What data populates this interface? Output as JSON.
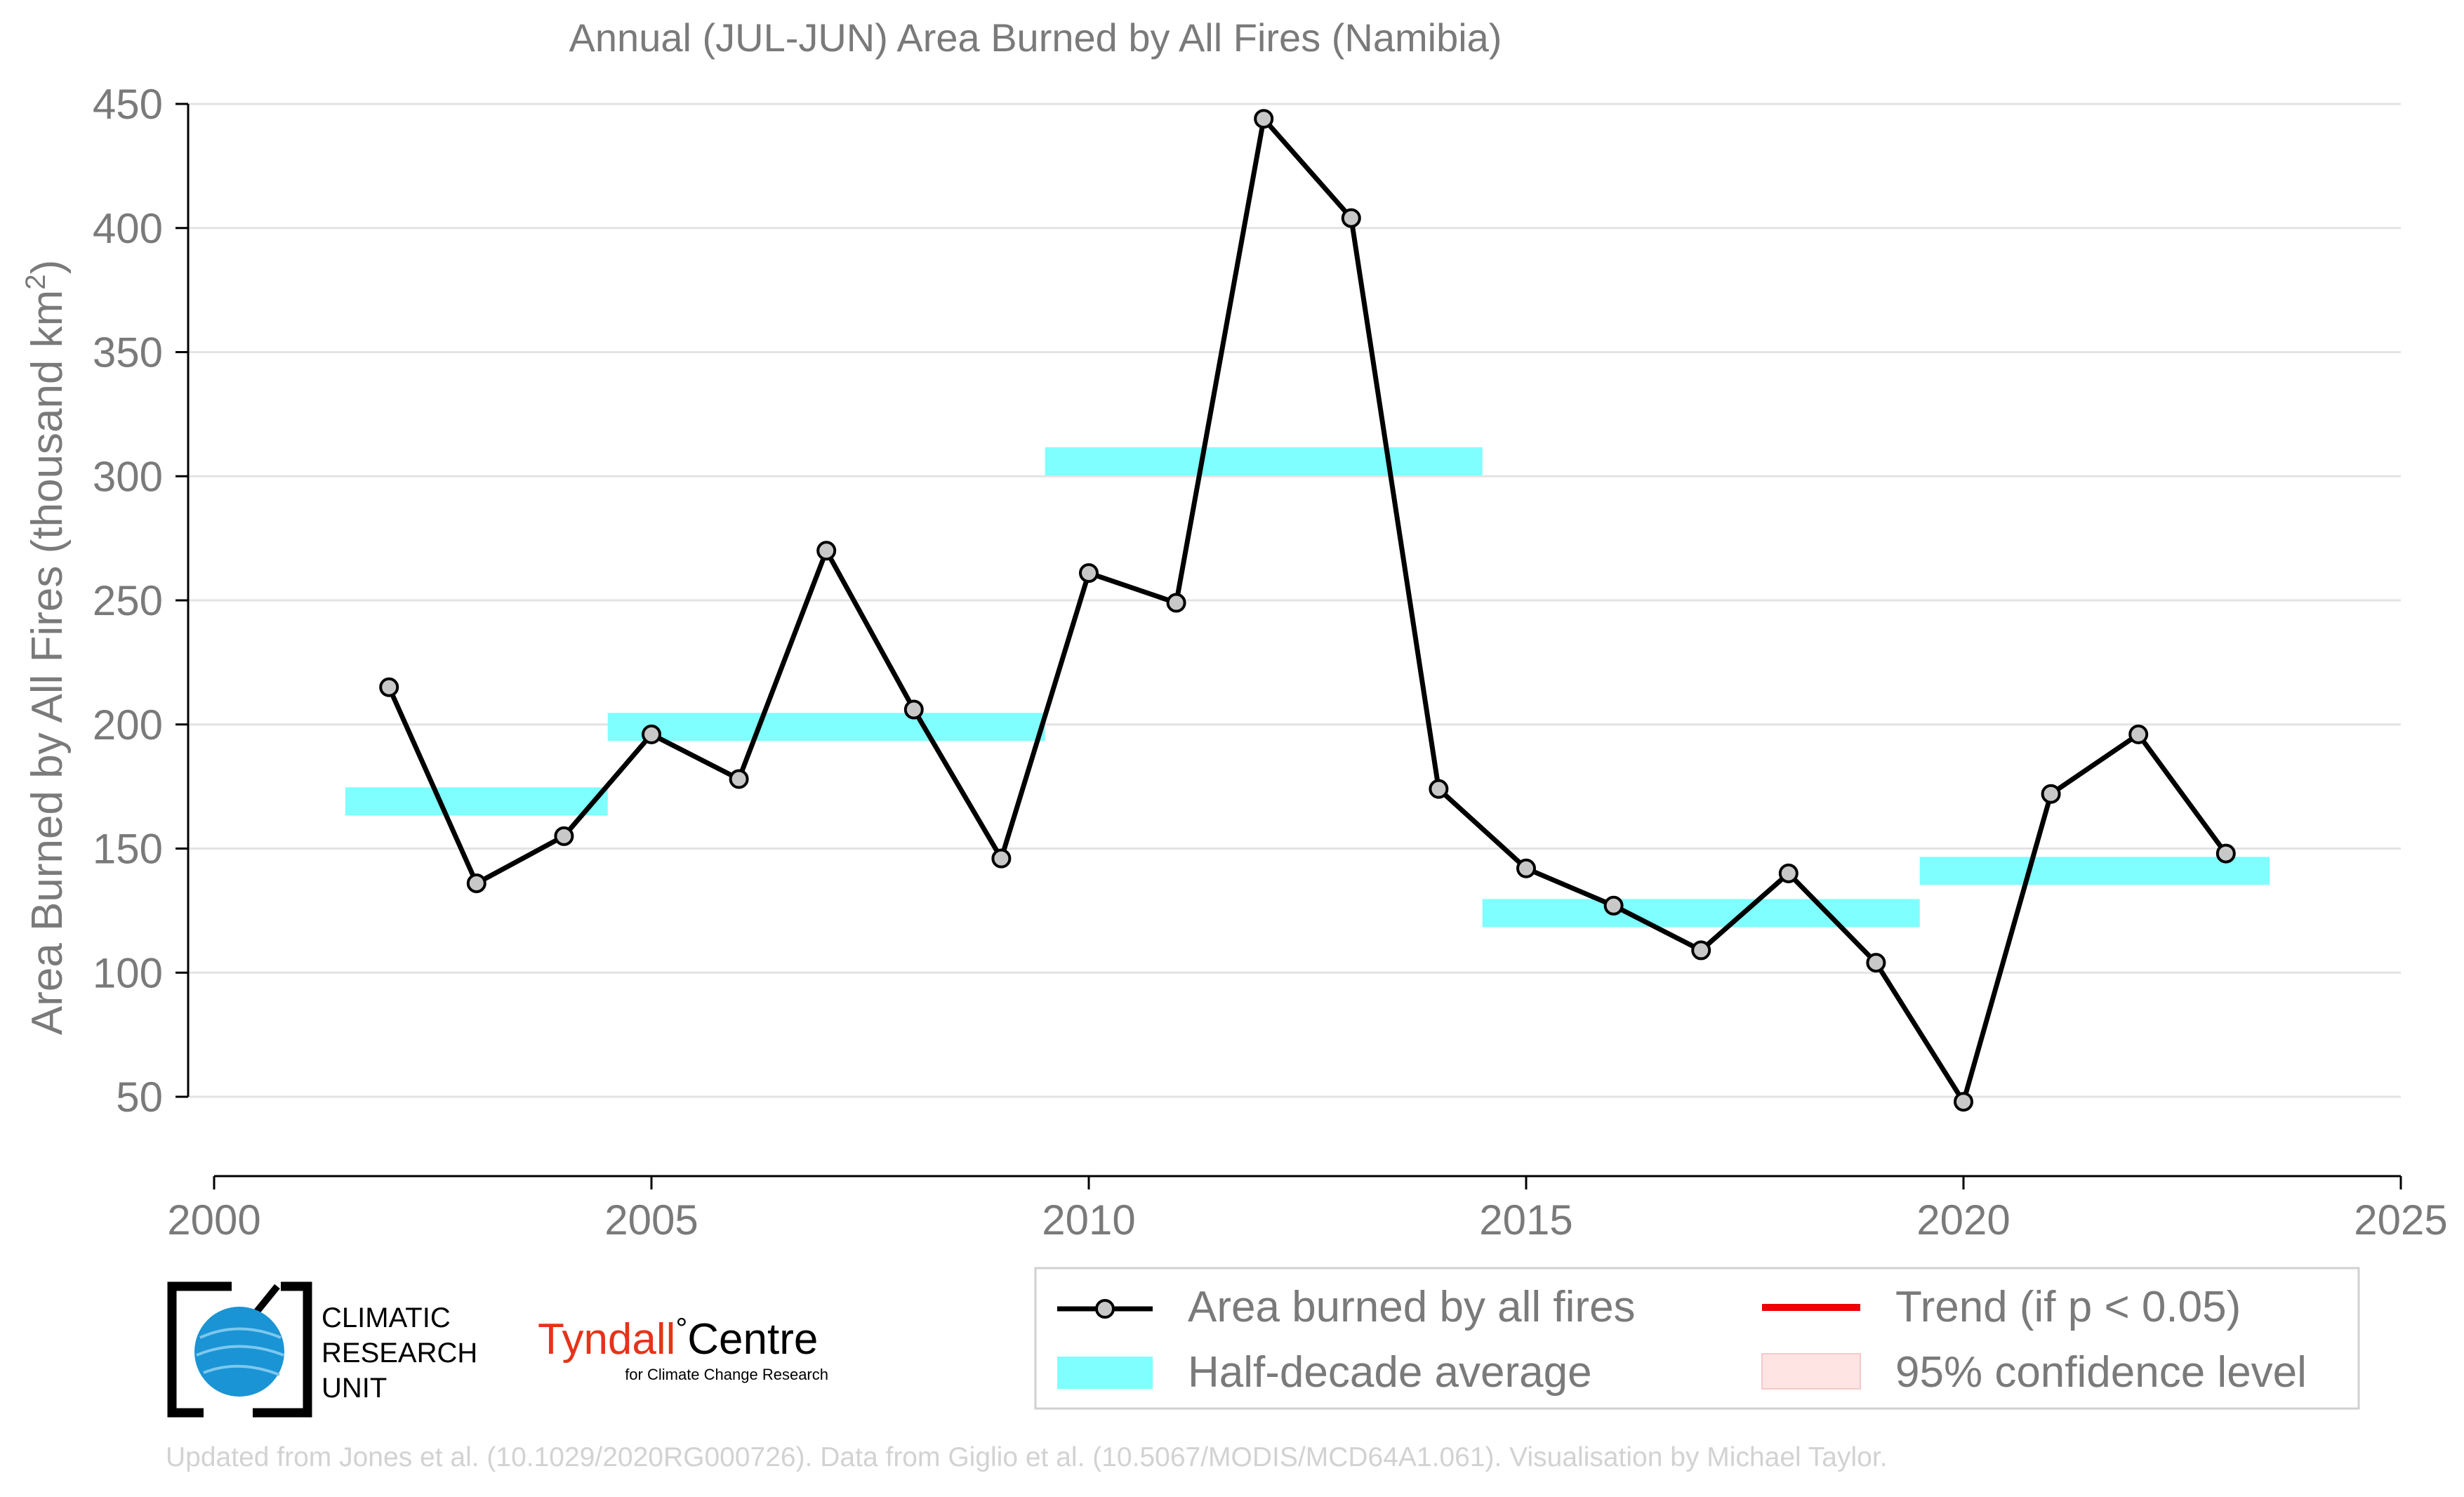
{
  "chart_data": {
    "type": "line",
    "title": "Annual (JUL-JUN) Area Burned by All Fires (Namibia)",
    "ylabel": "Area Burned by All Fires (thousand km",
    "ylabel_sup": "2",
    "ylabel_close": ")",
    "xlabel": "",
    "xlim": [
      2000,
      2025
    ],
    "ylim": [
      20,
      450
    ],
    "x_ticks": [
      2000,
      2005,
      2010,
      2015,
      2020,
      2025
    ],
    "y_ticks": [
      50,
      100,
      150,
      200,
      250,
      300,
      350,
      400,
      450
    ],
    "grid": "horizontal",
    "series": [
      {
        "name": "Area burned by all fires",
        "color": "#000000",
        "marker_color": "#c8c8c8",
        "x": [
          2002,
          2003,
          2004,
          2005,
          2006,
          2007,
          2008,
          2009,
          2010,
          2011,
          2012,
          2013,
          2014,
          2015,
          2016,
          2017,
          2018,
          2019,
          2020,
          2021,
          2022,
          2023
        ],
        "y": [
          215,
          136,
          155,
          196,
          178,
          270,
          206,
          146,
          261,
          249,
          444,
          404,
          174,
          142,
          127,
          109,
          140,
          104,
          48,
          172,
          196,
          148
        ]
      }
    ],
    "half_decade_average": {
      "name": "Half-decade average",
      "color": "#7fffff",
      "segments": [
        {
          "x0": 2001.5,
          "x1": 2004.5,
          "value": 169
        },
        {
          "x0": 2004.5,
          "x1": 2009.5,
          "value": 199
        },
        {
          "x0": 2009.5,
          "x1": 2014.5,
          "value": 306
        },
        {
          "x0": 2014.5,
          "x1": 2019.5,
          "value": 124
        },
        {
          "x0": 2019.5,
          "x1": 2023.5,
          "value": 141
        }
      ]
    },
    "legend": {
      "placement": "bottom-right",
      "entries": [
        {
          "label": "Area burned by all fires",
          "kind": "line-marker",
          "color": "#000000"
        },
        {
          "label": "Trend (if p < 0.05)",
          "kind": "line",
          "color": "#ee0000"
        },
        {
          "label": "Half-decade average",
          "kind": "band",
          "color": "#7fffff"
        },
        {
          "label": "95% confidence level",
          "kind": "band",
          "color": "#ffe4e4"
        }
      ]
    }
  },
  "logos": {
    "cru": [
      "CLIMATIC",
      "RESEARCH",
      "UNIT"
    ],
    "tyndall_name": "Tyndall",
    "tyndall_degree": "°",
    "tyndall_centre": "Centre",
    "tyndall_sub": "for Climate Change Research"
  },
  "footer": "Updated from Jones et al. (10.1029/2020RG000726). Data from Giglio et al. (10.5067/MODIS/MCD64A1.061). Visualisation by Michael Taylor."
}
